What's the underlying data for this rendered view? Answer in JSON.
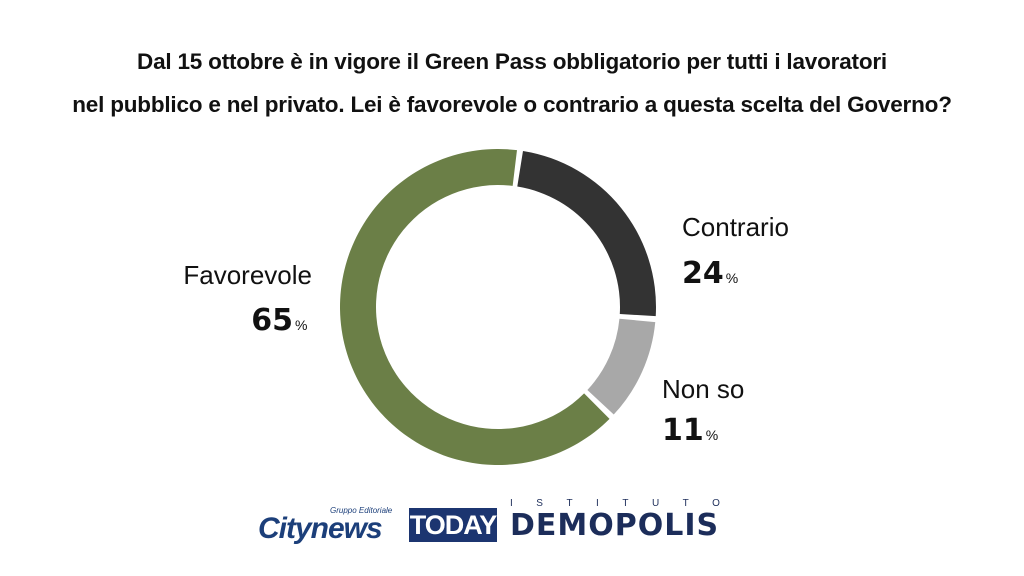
{
  "title": {
    "line1": "Dal 15 ottobre è in vigore il Green Pass obbligatorio per tutti i lavoratori",
    "line2": "nel pubblico e nel privato. Lei è favorevole o contrario a questa scelta del Governo?"
  },
  "chart_data": {
    "type": "pie",
    "donut": true,
    "title": "Dal 15 ottobre è in vigore il Green Pass obbligatorio per tutti i lavoratori nel pubblico e nel privato. Lei è favorevole o contrario a questa scelta del Governo?",
    "categories": [
      "Contrario",
      "Non so",
      "Favorevole"
    ],
    "values": [
      24,
      11,
      65
    ],
    "colors": [
      "#333333",
      "#a8a8a8",
      "#6b7f47"
    ],
    "value_labels": [
      "24",
      "11",
      "65"
    ],
    "unit": "%"
  },
  "logos": {
    "citynews_tagline": "Gruppo Editoriale",
    "citynews": "Citynews",
    "today": "TODAY",
    "demopolis_top": "ISTITUTO",
    "demopolis": "DEMOPOLIS"
  }
}
